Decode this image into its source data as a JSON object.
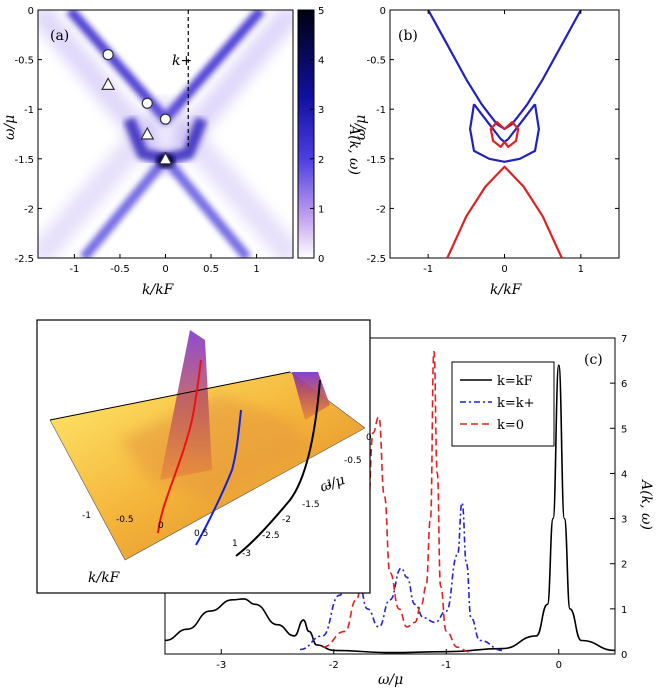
{
  "chart_data": [
    {
      "id": "a",
      "type": "heatmap",
      "panel_label": "(a)",
      "xlabel": "k/kF",
      "ylabel": "ω/μ",
      "xlim": [
        -1.4,
        1.4
      ],
      "ylim": [
        -2.5,
        0
      ],
      "xticks": [
        "-1",
        "-0.5",
        "0",
        "0.5",
        "1"
      ],
      "yticks": [
        "0",
        "-0.5",
        "-1",
        "-1.5",
        "-2",
        "-2.5"
      ],
      "colorbar": {
        "label": "A(k, ω)",
        "range": [
          0,
          5
        ],
        "ticks": [
          "0",
          "1",
          "2",
          "3",
          "4",
          "5"
        ]
      },
      "annotation": "k+",
      "dashed_line_k": 0.25,
      "circles": [
        {
          "k": -0.63,
          "w": -0.45
        },
        {
          "k": -0.2,
          "w": -0.94
        },
        {
          "k": 0.0,
          "w": -1.1
        }
      ],
      "triangles": [
        {
          "k": -0.63,
          "w": -0.75
        },
        {
          "k": -0.2,
          "w": -1.25
        },
        {
          "k": 0.0,
          "w": -1.5
        }
      ]
    },
    {
      "id": "b",
      "type": "line",
      "panel_label": "(b)",
      "xlabel": "k/kF",
      "ylabel": "ω/μ",
      "xlim": [
        -1.5,
        1.5
      ],
      "ylim": [
        -2.5,
        0
      ],
      "xticks": [
        "-1",
        "0",
        "1"
      ],
      "yticks": [
        "0",
        "-0.5",
        "-1",
        "-1.5",
        "-2",
        "-2.5"
      ],
      "series": [
        {
          "color": "#2222bb",
          "segments": [
            [
              [
                -1.0,
                0.0
              ],
              [
                -0.75,
                -0.35
              ],
              [
                -0.5,
                -0.7
              ],
              [
                -0.3,
                -0.95
              ],
              [
                -0.2,
                -1.05
              ],
              [
                -0.1,
                -1.15
              ],
              [
                0.0,
                -1.2
              ],
              [
                0.1,
                -1.15
              ],
              [
                0.2,
                -1.05
              ],
              [
                0.3,
                -0.95
              ],
              [
                0.5,
                -0.7
              ],
              [
                0.75,
                -0.35
              ],
              [
                1.0,
                0.0
              ]
            ],
            [
              [
                -0.4,
                -0.95
              ],
              [
                -0.3,
                -1.05
              ],
              [
                -0.2,
                -1.15
              ],
              [
                -0.1,
                -1.25
              ],
              [
                -0.05,
                -1.3
              ],
              [
                0.0,
                -1.33
              ],
              [
                0.05,
                -1.3
              ],
              [
                0.1,
                -1.25
              ],
              [
                0.2,
                -1.15
              ],
              [
                0.3,
                -1.05
              ],
              [
                0.4,
                -0.95
              ]
            ],
            [
              [
                -0.4,
                -0.95
              ],
              [
                -0.45,
                -1.2
              ],
              [
                -0.4,
                -1.42
              ],
              [
                -0.2,
                -1.5
              ],
              [
                0.0,
                -1.53
              ],
              [
                0.2,
                -1.5
              ],
              [
                0.4,
                -1.42
              ],
              [
                0.45,
                -1.2
              ],
              [
                0.4,
                -0.95
              ]
            ]
          ]
        },
        {
          "color": "#dd2222",
          "segments": [
            [
              [
                -0.75,
                -2.5
              ],
              [
                -0.5,
                -2.08
              ],
              [
                -0.25,
                -1.78
              ],
              [
                0.0,
                -1.58
              ],
              [
                0.25,
                -1.78
              ],
              [
                0.5,
                -2.08
              ],
              [
                0.75,
                -2.5
              ]
            ],
            [
              [
                0.0,
                -1.2
              ],
              [
                -0.1,
                -1.13
              ],
              [
                -0.18,
                -1.2
              ],
              [
                -0.15,
                -1.32
              ],
              [
                -0.05,
                -1.38
              ],
              [
                0.0,
                -1.33
              ],
              [
                0.05,
                -1.38
              ],
              [
                0.15,
                -1.32
              ],
              [
                0.18,
                -1.2
              ],
              [
                0.1,
                -1.13
              ],
              [
                0.0,
                -1.2
              ]
            ]
          ]
        }
      ]
    },
    {
      "id": "c",
      "type": "line",
      "panel_label": "(c)",
      "xlabel": "ω/μ",
      "ylabel": "A(k, ω)",
      "xlim": [
        -3.5,
        0.5
      ],
      "ylim": [
        0,
        7
      ],
      "xticks": [
        "-3",
        "-2",
        "-1",
        "0"
      ],
      "yticks": [
        "0",
        "1",
        "2",
        "3",
        "4",
        "5",
        "6",
        "7"
      ],
      "legend_position": "top-right",
      "series": [
        {
          "name": "k=kF",
          "color": "#000000",
          "dash": "",
          "x": [
            -3.5,
            -3.3,
            -3.1,
            -2.9,
            -2.8,
            -2.7,
            -2.5,
            -2.35,
            -2.27,
            -2.22,
            -2.15,
            -2.0,
            -1.5,
            -1.0,
            -0.5,
            -0.2,
            -0.1,
            -0.05,
            0.0,
            0.05,
            0.1,
            0.2,
            0.5
          ],
          "y": [
            0.3,
            0.55,
            0.95,
            1.2,
            1.22,
            1.1,
            0.65,
            0.4,
            0.75,
            0.5,
            0.2,
            0.08,
            0.03,
            0.05,
            0.12,
            0.4,
            1.1,
            3.0,
            6.4,
            3.0,
            1.0,
            0.3,
            0.08
          ]
        },
        {
          "name": "k=k+",
          "color": "#2222cc",
          "dash": "6,3,2,3",
          "x": [
            -2.3,
            -2.1,
            -1.95,
            -1.85,
            -1.78,
            -1.7,
            -1.6,
            -1.5,
            -1.4,
            -1.35,
            -1.28,
            -1.2,
            -1.1,
            -1.0,
            -0.9,
            -0.86,
            -0.82,
            -0.78,
            -0.7,
            -0.5
          ],
          "y": [
            0.1,
            0.4,
            1.3,
            1.82,
            1.6,
            1.0,
            0.6,
            1.2,
            1.9,
            1.7,
            1.1,
            0.8,
            0.7,
            0.95,
            2.2,
            3.35,
            2.0,
            0.8,
            0.3,
            0.08
          ]
        },
        {
          "name": "k=0",
          "color": "#dd2222",
          "dash": "7,4",
          "x": [
            -2.1,
            -1.9,
            -1.8,
            -1.7,
            -1.65,
            -1.6,
            -1.55,
            -1.5,
            -1.42,
            -1.35,
            -1.28,
            -1.22,
            -1.18,
            -1.14,
            -1.11,
            -1.08,
            -1.05,
            -1.0,
            -0.9,
            -0.8
          ],
          "y": [
            0.15,
            0.5,
            1.2,
            3.0,
            4.9,
            5.25,
            3.5,
            1.8,
            1.0,
            0.6,
            0.7,
            1.1,
            1.5,
            3.0,
            6.7,
            4.0,
            1.5,
            0.5,
            0.15,
            0.05
          ]
        }
      ]
    },
    {
      "id": "inset",
      "type": "area",
      "description_labels": true,
      "xlabel": "k/kF",
      "ylabel": "ω/μ",
      "xticks": [
        "-1",
        "-0.5",
        "0",
        "0.5",
        "1"
      ],
      "yticks": [
        "0",
        "-0.5",
        "-1",
        "-1.5",
        "-2",
        "-2.5",
        "-3"
      ]
    }
  ]
}
